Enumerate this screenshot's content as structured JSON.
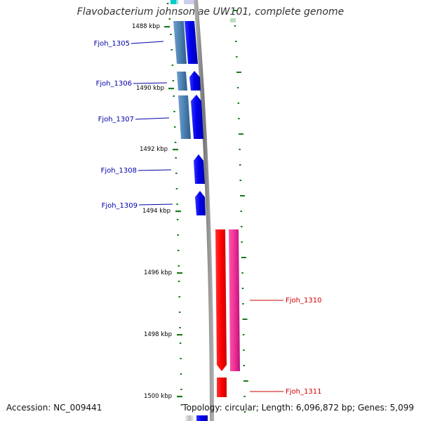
{
  "title": "Flavobacterium johnsoniae UW101, complete genome",
  "accession": "Accession: NC_009441",
  "topology": "Topology: circular; Length: 6,096,872 bp; Genes: 5,099",
  "ticks": [
    "1488 kbp",
    "1490 kbp",
    "1492 kbp",
    "1494 kbp",
    "1496 kbp",
    "1498 kbp",
    "1500 kbp"
  ],
  "genes": [
    {
      "label": "Fjoh_1305",
      "strand": "forward"
    },
    {
      "label": "Fjoh_1306",
      "strand": "forward"
    },
    {
      "label": "Fjoh_1307",
      "strand": "forward"
    },
    {
      "label": "Fjoh_1308",
      "strand": "forward"
    },
    {
      "label": "Fjoh_1309",
      "strand": "forward"
    },
    {
      "label": "Fjoh_1310",
      "strand": "reverse"
    },
    {
      "label": "Fjoh_1311",
      "strand": "reverse"
    }
  ],
  "colors": {
    "forward_cds": "#0000ee",
    "forward_gene": "#4a7fb0",
    "reverse_cds": "#ff0000",
    "reverse_gene": "#ee3399",
    "forward_label": "#0000aa",
    "reverse_label": "#cc0000",
    "tick": "#1a7a1a",
    "backbone": "#888888"
  }
}
